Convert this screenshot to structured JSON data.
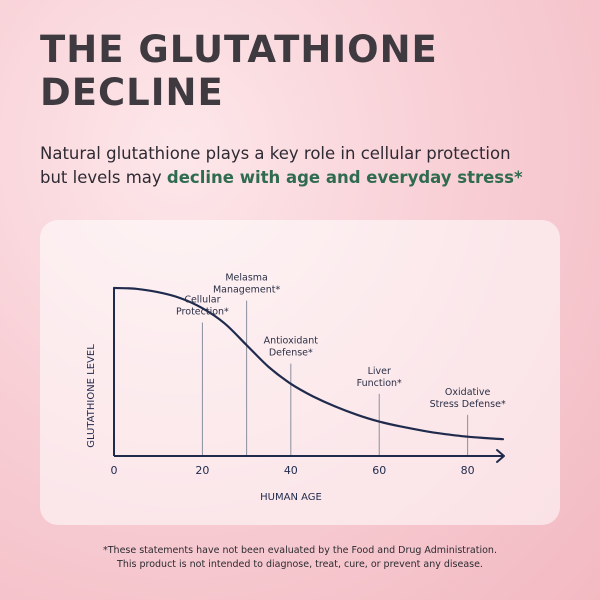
{
  "headline": {
    "line1": "THE GLUTATHIONE",
    "line2": "DECLINE"
  },
  "subtitle": {
    "line1": "Natural glutathione plays a key role in cellular protection",
    "line2_plain": "but levels may ",
    "line2_highlight": "decline with age and everyday stress*"
  },
  "footnote": {
    "line1": "*These statements have not been evaluated by the Food and Drug Administration.",
    "line2": "This product is not intended to diagnose, treat, cure, or prevent any disease."
  },
  "colors": {
    "curve": "#1f2a4d",
    "marker": "#8a8f9c",
    "highlight": "#2f6b4f",
    "title": "#3e3a40"
  },
  "chart_data": {
    "type": "line",
    "title": "",
    "xlabel": "HUMAN AGE",
    "ylabel": "GLUTATHIONE LEVEL",
    "xlim": [
      0,
      88
    ],
    "ylim": [
      0,
      1
    ],
    "xticks": [
      0,
      20,
      40,
      60,
      80
    ],
    "grid": false,
    "legend": "none",
    "series": [
      {
        "x": [
          0,
          5,
          10,
          15,
          20,
          25,
          30,
          35,
          40,
          45,
          50,
          55,
          60,
          65,
          70,
          75,
          80,
          85,
          88
        ],
        "y": [
          1.0,
          0.995,
          0.975,
          0.94,
          0.88,
          0.79,
          0.66,
          0.53,
          0.43,
          0.355,
          0.295,
          0.245,
          0.205,
          0.175,
          0.15,
          0.13,
          0.115,
          0.105,
          0.1
        ]
      }
    ],
    "annotations": [
      {
        "x": 20,
        "top": 0.795,
        "lines": [
          "Cellular",
          "Protection*"
        ]
      },
      {
        "x": 30,
        "top": 0.925,
        "lines": [
          "Melasma",
          "Management*"
        ]
      },
      {
        "x": 40,
        "top": 0.55,
        "lines": [
          "Antioxidant",
          "Defense*"
        ]
      },
      {
        "x": 60,
        "top": 0.37,
        "lines": [
          "Liver",
          "Function*"
        ]
      },
      {
        "x": 80,
        "top": 0.245,
        "lines": [
          "Oxidative",
          "Stress Defense*"
        ]
      }
    ]
  }
}
